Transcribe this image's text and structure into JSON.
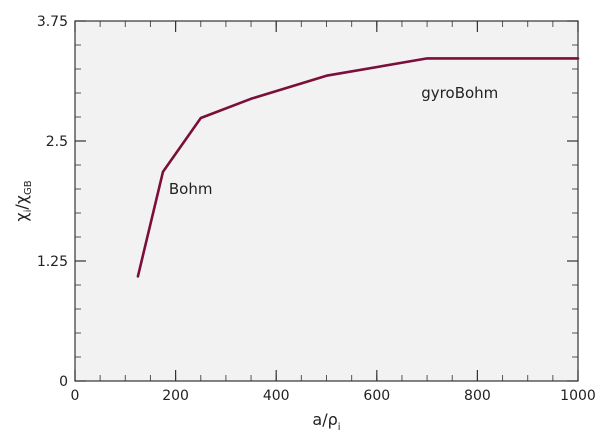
{
  "chart_data": {
    "type": "line",
    "xlim": [
      0,
      1000
    ],
    "ylim": [
      0,
      3.75
    ],
    "x_ticks": [
      0,
      200,
      400,
      600,
      800,
      1000
    ],
    "x_tick_labels": [
      "0",
      "200",
      "400",
      "600",
      "800",
      "1000"
    ],
    "y_ticks": [
      0,
      1.25,
      2.5,
      3.75
    ],
    "y_tick_labels": [
      "0",
      "1.25",
      "2.5",
      "3.75"
    ],
    "xlabel": {
      "main": "a/ρ",
      "sub": "i"
    },
    "ylabel": {
      "part1": "χ",
      "sub1": "i",
      "part2": "/χ",
      "sub2": "GB"
    },
    "grid": false,
    "background": "#f2f2f2",
    "line_color": "#7a0f3a",
    "series": [
      {
        "x": [
          125,
          175,
          250,
          350,
          500,
          700,
          800,
          1000
        ],
        "y": [
          1.09,
          2.18,
          2.74,
          2.94,
          3.18,
          3.36,
          3.36,
          3.36
        ]
      }
    ],
    "annotations": [
      {
        "text": "Bohm",
        "x": 230,
        "y": 1.95
      },
      {
        "text": "gyroBohm",
        "x": 765,
        "y": 2.95
      }
    ]
  }
}
